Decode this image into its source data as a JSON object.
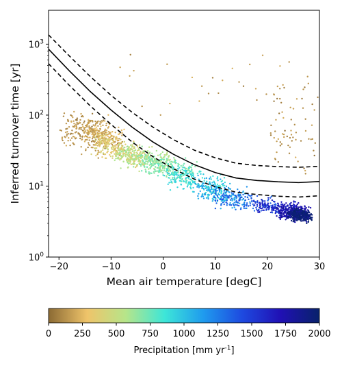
{
  "chart_data": {
    "type": "scatter",
    "xlabel": "Mean air temperature [degC]",
    "ylabel": "Inferred turnover time [yr]",
    "xlim": [
      -22,
      30
    ],
    "ylim": [
      1,
      3000
    ],
    "yscale": "log",
    "grid": false,
    "x_ticks": [
      -20,
      -10,
      0,
      10,
      20,
      30
    ],
    "x_tick_labels": [
      "−20",
      "−10",
      "0",
      "10",
      "20",
      "30"
    ],
    "y_ticks": [
      1,
      10,
      100,
      1000
    ],
    "y_tick_labels": [
      "10^0",
      "10^1",
      "10^2",
      "10^3"
    ],
    "colorbar": {
      "label": "Precipitation [mm yr^-1]",
      "range": [
        0,
        2000
      ],
      "ticks": [
        0,
        250,
        500,
        750,
        1000,
        1250,
        1500,
        1750,
        2000
      ],
      "tick_labels": [
        "0",
        "250",
        "500",
        "750",
        "1000",
        "1250",
        "1500",
        "1750",
        "2000"
      ],
      "colormap_stops": [
        "#8B6A34",
        "#EFC46A",
        "#B6E58A",
        "#3DE6D8",
        "#1F9BEE",
        "#1E4AE0",
        "#2010B4",
        "#08226A"
      ]
    },
    "lines": [
      {
        "style": "solid",
        "color": "#000000",
        "x": [
          -22,
          -18,
          -14,
          -10,
          -6,
          -2,
          2,
          6,
          10,
          14,
          18,
          22,
          26,
          30
        ],
        "y": [
          850,
          420,
          215,
          118,
          68,
          42,
          28,
          20,
          15.5,
          13,
          12,
          11.5,
          11.2,
          11.6
        ]
      },
      {
        "style": "dashed",
        "color": "#000000",
        "x": [
          -22,
          -18,
          -14,
          -10,
          -6,
          -2,
          2,
          6,
          10,
          14,
          18,
          22,
          26,
          30
        ],
        "y": [
          1350,
          680,
          350,
          190,
          110,
          68,
          45,
          32,
          25,
          21,
          19.5,
          18.8,
          18.4,
          19
        ]
      },
      {
        "style": "dashed",
        "color": "#000000",
        "x": [
          -22,
          -18,
          -14,
          -10,
          -6,
          -2,
          2,
          6,
          10,
          14,
          18,
          22,
          26,
          30
        ],
        "y": [
          530,
          262,
          135,
          74,
          42,
          26,
          17.5,
          12.5,
          9.8,
          8.2,
          7.6,
          7.2,
          7.0,
          7.3
        ]
      }
    ],
    "point_clusters": [
      {
        "precip": 130,
        "xr": [
          -19,
          -11
        ],
        "yc": [
          68,
          50
        ],
        "spread": 0.45,
        "n": 230
      },
      {
        "precip": 220,
        "xr": [
          -15,
          -8
        ],
        "yc": [
          62,
          42
        ],
        "spread": 0.35,
        "n": 180
      },
      {
        "precip": 380,
        "xr": [
          -13,
          -4
        ],
        "yc": [
          40,
          26
        ],
        "spread": 0.3,
        "n": 220
      },
      {
        "precip": 560,
        "xr": [
          -9,
          2
        ],
        "yc": [
          30,
          20
        ],
        "spread": 0.28,
        "n": 260
      },
      {
        "precip": 700,
        "xr": [
          -4,
          6
        ],
        "yc": [
          22,
          14
        ],
        "spread": 0.3,
        "n": 240
      },
      {
        "precip": 900,
        "xr": [
          1,
          12
        ],
        "yc": [
          15,
          8.5
        ],
        "spread": 0.3,
        "n": 220
      },
      {
        "precip": 1100,
        "xr": [
          6,
          16
        ],
        "yc": [
          9.5,
          6.5
        ],
        "spread": 0.3,
        "n": 170
      },
      {
        "precip": 1350,
        "xr": [
          10,
          22
        ],
        "yc": [
          7,
          5.2
        ],
        "spread": 0.25,
        "n": 150
      },
      {
        "precip": 1600,
        "xr": [
          18,
          26
        ],
        "yc": [
          5.5,
          4.5
        ],
        "spread": 0.2,
        "n": 160
      },
      {
        "precip": 1750,
        "xr": [
          22,
          28
        ],
        "yc": [
          4.5,
          4.2
        ],
        "spread": 0.2,
        "n": 250
      },
      {
        "precip": 1950,
        "xr": [
          24.5,
          28
        ],
        "yc": [
          4,
          3.8
        ],
        "spread": 0.15,
        "n": 300
      },
      {
        "precip": 120,
        "xr": [
          21,
          29.5
        ],
        "yc": [
          60,
          60
        ],
        "spread": 1.1,
        "n": 70
      },
      {
        "precip": 150,
        "xr": [
          -12,
          28
        ],
        "yc": [
          350,
          350
        ],
        "spread": 0.8,
        "n": 30
      }
    ]
  }
}
